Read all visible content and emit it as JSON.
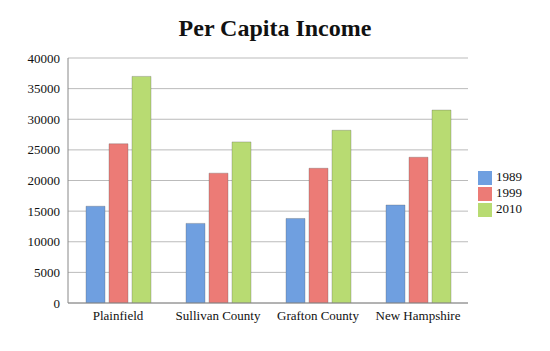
{
  "chart_data": {
    "type": "bar",
    "title": "Per Capita Income",
    "categories": [
      "Plainfield",
      "Sullivan County",
      "Grafton County",
      "New Hampshire"
    ],
    "series": [
      {
        "name": "1989",
        "color": "#6f9fe0",
        "values": [
          15800,
          13000,
          13800,
          16000
        ]
      },
      {
        "name": "1999",
        "color": "#ec7b76",
        "values": [
          26000,
          21200,
          22000,
          23800
        ]
      },
      {
        "name": "2010",
        "color": "#b8db72",
        "values": [
          37000,
          26300,
          28200,
          31500
        ]
      }
    ],
    "ylim": [
      0,
      40000
    ],
    "yticks": [
      0,
      5000,
      10000,
      15000,
      20000,
      25000,
      30000,
      35000,
      40000
    ],
    "grid": true,
    "legend": "right"
  }
}
